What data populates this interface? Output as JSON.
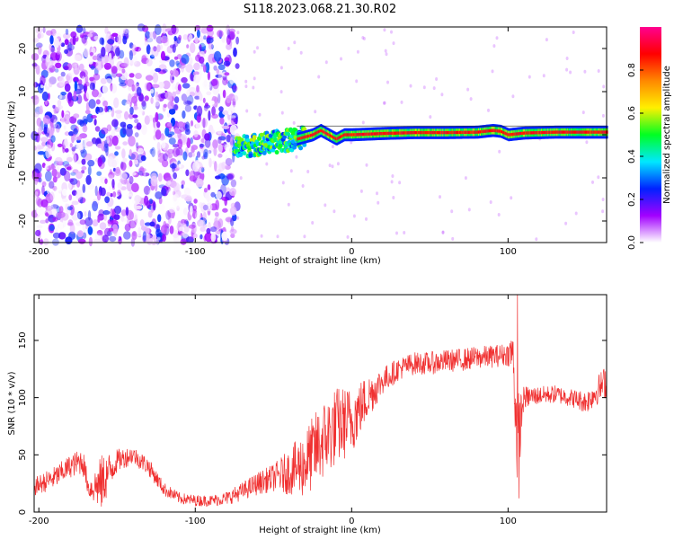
{
  "title": "S118.2023.068.21.30.R02",
  "chart_data": [
    {
      "type": "heatmap",
      "xlabel": "Height of straight line (km)",
      "ylabel": "Frequency (Hz)",
      "xlim": [
        -203,
        163
      ],
      "ylim": [
        -25,
        25
      ],
      "xticks": [
        -200,
        -100,
        0,
        100
      ],
      "yticks": [
        -20,
        -10,
        0,
        10,
        20
      ],
      "grid": false,
      "colorbar": {
        "label": "Normalized spectral amplitude",
        "range": [
          0,
          1
        ],
        "ticks": [
          "0.0",
          "0.2",
          "0.4",
          "0.6",
          "0.8"
        ],
        "colormap": [
          "#ffffff",
          "#a200ff",
          "#0022ff",
          "#00e8ff",
          "#00ff22",
          "#fff000",
          "#ff8800",
          "#ff0000",
          "#ff0090"
        ]
      },
      "regions": [
        {
          "x_range": [
            -203,
            -73
          ],
          "y_range": [
            -25,
            25
          ],
          "level": 0.15,
          "description_color": "#7a00e8"
        },
        {
          "x_range": [
            -73,
            -35
          ],
          "y_range": [
            -4,
            2
          ],
          "level": 0.4
        },
        {
          "x_range": [
            -35,
            163
          ],
          "y_range": [
            -1,
            2
          ],
          "level": 0.9
        }
      ],
      "ridge": {
        "x": [
          -75,
          -65,
          -55,
          -45,
          -35,
          -25,
          -20,
          -15,
          -10,
          -5,
          0,
          20,
          40,
          60,
          80,
          90,
          95,
          100,
          110,
          130,
          163
        ],
        "y": [
          -3,
          -2.5,
          -2,
          -1.5,
          -1,
          0,
          1,
          0,
          -1,
          0,
          0,
          0.3,
          0.5,
          0.5,
          0.6,
          1,
          0.8,
          0,
          0.4,
          0.6,
          0.6
        ]
      }
    },
    {
      "type": "line",
      "xlabel": "Height of straight line (km)",
      "ylabel": "SNR (10 * v/v)",
      "xlim": [
        -203,
        163
      ],
      "ylim": [
        0,
        190
      ],
      "xticks": [
        -200,
        -100,
        0,
        100
      ],
      "yticks": [
        0,
        50,
        100,
        150
      ],
      "color": "#f03030",
      "grid": false,
      "series_envelope": {
        "x": [
          -203,
          -190,
          -180,
          -172,
          -168,
          -160,
          -150,
          -140,
          -130,
          -120,
          -110,
          -100,
          -90,
          -80,
          -70,
          -60,
          -50,
          -40,
          -30,
          -20,
          -10,
          0,
          10,
          20,
          30,
          40,
          50,
          60,
          70,
          80,
          90,
          100,
          103,
          106,
          110,
          120,
          130,
          140,
          150,
          163
        ],
        "mean": [
          22,
          30,
          40,
          45,
          20,
          25,
          45,
          50,
          40,
          20,
          12,
          10,
          10,
          12,
          18,
          25,
          30,
          35,
          42,
          60,
          75,
          80,
          100,
          115,
          125,
          130,
          130,
          132,
          133,
          135,
          136,
          138,
          140,
          60,
          100,
          102,
          103,
          100,
          96,
          115
        ],
        "spread": [
          8,
          10,
          10,
          12,
          8,
          25,
          10,
          8,
          8,
          6,
          5,
          5,
          5,
          6,
          8,
          10,
          12,
          20,
          30,
          35,
          35,
          30,
          20,
          12,
          10,
          10,
          10,
          10,
          10,
          10,
          10,
          10,
          20,
          45,
          10,
          8,
          8,
          8,
          10,
          15
        ]
      },
      "spikes": [
        {
          "x": 106,
          "y": 190
        },
        {
          "x": 107,
          "y": 12
        }
      ]
    }
  ]
}
